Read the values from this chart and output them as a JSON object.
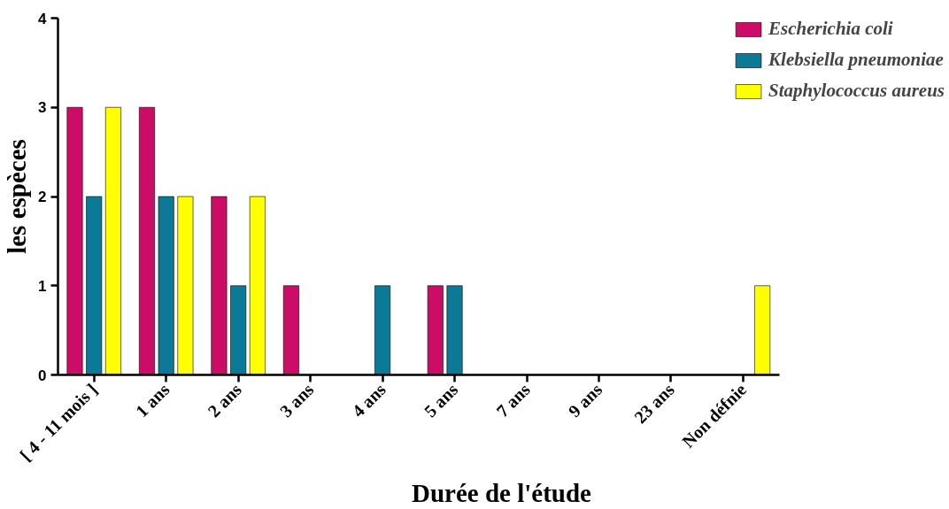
{
  "chart_data": {
    "type": "bar",
    "xlabel": "Durée de l'étude",
    "ylabel": "les espèces",
    "categories": [
      "[ 4 - 11 mois ]",
      "1 ans",
      "2 ans",
      "3 ans",
      "4 ans",
      "5 ans",
      "7 ans",
      "9 ans",
      "23 ans",
      "Non défnie"
    ],
    "series": [
      {
        "name": "Escherichia coli",
        "color": "#cc0c66",
        "values": [
          3,
          3,
          2,
          1,
          0,
          1,
          0,
          0,
          0,
          0
        ]
      },
      {
        "name": "Klebsiella pneumoniae",
        "color": "#0a7a96",
        "values": [
          2,
          2,
          1,
          0,
          1,
          1,
          0,
          0,
          0,
          0
        ]
      },
      {
        "name": "Staphylococcus aureus",
        "color": "#ffff00",
        "values": [
          3,
          2,
          2,
          0,
          0,
          0,
          0,
          0,
          0,
          1
        ]
      }
    ],
    "ylim": [
      0,
      4
    ],
    "yticks": [
      0,
      1,
      2,
      3,
      4
    ],
    "grid": false,
    "legend": "top right"
  }
}
